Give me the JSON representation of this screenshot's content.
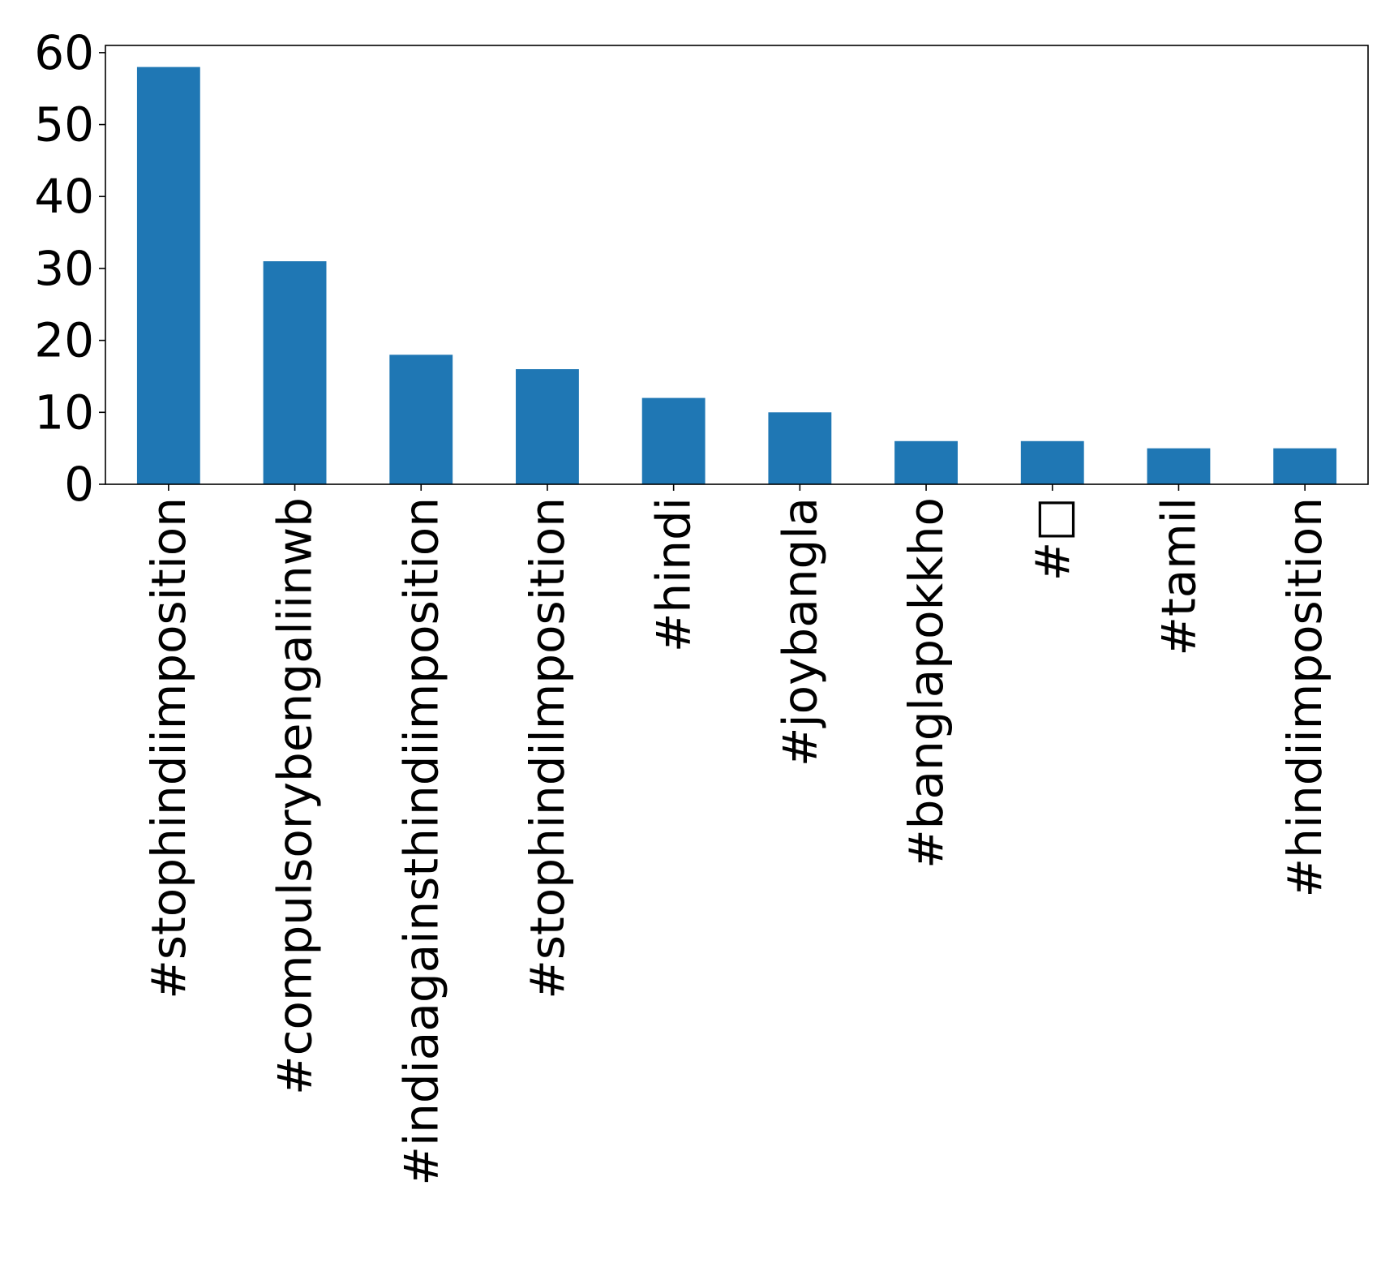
{
  "chart_data": {
    "type": "bar",
    "title": "",
    "xlabel": "",
    "ylabel": "",
    "categories": [
      "#stophindiimposition",
      "#compulsorybengaliinwb",
      "#indiaagainsthindiimposition",
      "#stophindilmposition",
      "#hindi",
      "#joybangla",
      "#banglapokkho",
      "#□",
      "#tamil",
      "#hindiimposition"
    ],
    "values": [
      58,
      31,
      18,
      16,
      12,
      10,
      6,
      6,
      5,
      5
    ],
    "ylim": [
      0,
      61
    ],
    "yticks": [
      0,
      10,
      20,
      30,
      40,
      50,
      60
    ],
    "bar_color": "#1f77b4",
    "grid": false,
    "legend": "none"
  }
}
